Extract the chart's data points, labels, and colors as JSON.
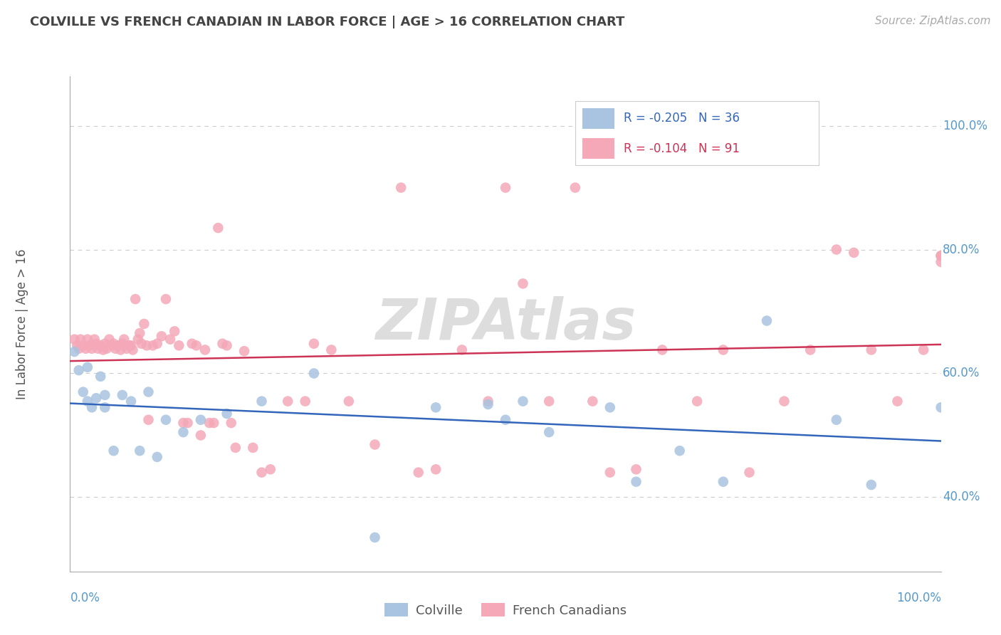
{
  "title": "COLVILLE VS FRENCH CANADIAN IN LABOR FORCE | AGE > 16 CORRELATION CHART",
  "source_text": "Source: ZipAtlas.com",
  "ylabel": "In Labor Force | Age > 16",
  "xlim": [
    0.0,
    1.0
  ],
  "ylim": [
    0.28,
    1.08
  ],
  "yticks": [
    0.4,
    0.6,
    0.8,
    1.0
  ],
  "ytick_labels": [
    "40.0%",
    "60.0%",
    "80.0%",
    "100.0%"
  ],
  "colville_R": -0.205,
  "colville_N": 36,
  "french_R": -0.104,
  "french_N": 91,
  "colville_color": "#a8c4e0",
  "french_color": "#f4a8b8",
  "colville_line_color": "#3366bb",
  "french_line_color": "#cc3355",
  "background_color": "#ffffff",
  "grid_color": "#cccccc",
  "axis_label_color": "#5599cc",
  "title_color": "#444444",
  "watermark_color": "#dddddd",
  "colville_x": [
    0.005,
    0.01,
    0.015,
    0.02,
    0.02,
    0.025,
    0.03,
    0.035,
    0.04,
    0.04,
    0.05,
    0.06,
    0.07,
    0.08,
    0.09,
    0.1,
    0.11,
    0.13,
    0.15,
    0.18,
    0.22,
    0.28,
    0.35,
    0.42,
    0.48,
    0.5,
    0.52,
    0.55,
    0.62,
    0.65,
    0.7,
    0.75,
    0.8,
    0.88,
    0.92,
    1.0
  ],
  "colville_y": [
    0.635,
    0.605,
    0.57,
    0.555,
    0.61,
    0.545,
    0.56,
    0.595,
    0.545,
    0.565,
    0.475,
    0.565,
    0.555,
    0.475,
    0.57,
    0.465,
    0.525,
    0.505,
    0.525,
    0.535,
    0.555,
    0.6,
    0.335,
    0.545,
    0.55,
    0.525,
    0.555,
    0.505,
    0.545,
    0.425,
    0.475,
    0.425,
    0.685,
    0.525,
    0.42,
    0.545
  ],
  "french_x": [
    0.005,
    0.008,
    0.01,
    0.012,
    0.015,
    0.018,
    0.02,
    0.022,
    0.025,
    0.028,
    0.03,
    0.032,
    0.035,
    0.038,
    0.04,
    0.042,
    0.045,
    0.048,
    0.05,
    0.052,
    0.055,
    0.058,
    0.06,
    0.062,
    0.065,
    0.068,
    0.07,
    0.072,
    0.075,
    0.078,
    0.08,
    0.082,
    0.085,
    0.088,
    0.09,
    0.095,
    0.1,
    0.105,
    0.11,
    0.115,
    0.12,
    0.125,
    0.13,
    0.135,
    0.14,
    0.145,
    0.15,
    0.155,
    0.16,
    0.165,
    0.17,
    0.175,
    0.18,
    0.185,
    0.19,
    0.2,
    0.21,
    0.22,
    0.23,
    0.25,
    0.27,
    0.28,
    0.3,
    0.32,
    0.35,
    0.38,
    0.4,
    0.42,
    0.45,
    0.48,
    0.5,
    0.52,
    0.55,
    0.58,
    0.6,
    0.62,
    0.65,
    0.68,
    0.72,
    0.75,
    0.78,
    0.82,
    0.85,
    0.88,
    0.9,
    0.92,
    0.95,
    0.98,
    1.0,
    1.0,
    1.0
  ],
  "french_y": [
    0.655,
    0.645,
    0.64,
    0.655,
    0.645,
    0.64,
    0.655,
    0.645,
    0.64,
    0.655,
    0.648,
    0.64,
    0.645,
    0.638,
    0.648,
    0.64,
    0.655,
    0.645,
    0.648,
    0.64,
    0.645,
    0.638,
    0.648,
    0.655,
    0.64,
    0.645,
    0.645,
    0.638,
    0.72,
    0.655,
    0.665,
    0.648,
    0.68,
    0.645,
    0.525,
    0.645,
    0.648,
    0.66,
    0.72,
    0.655,
    0.668,
    0.645,
    0.52,
    0.52,
    0.648,
    0.645,
    0.5,
    0.638,
    0.52,
    0.52,
    0.835,
    0.648,
    0.645,
    0.52,
    0.48,
    0.636,
    0.48,
    0.44,
    0.445,
    0.555,
    0.555,
    0.648,
    0.638,
    0.555,
    0.485,
    0.9,
    0.44,
    0.445,
    0.638,
    0.555,
    0.9,
    0.745,
    0.555,
    0.9,
    0.555,
    0.44,
    0.445,
    0.638,
    0.555,
    0.638,
    0.44,
    0.555,
    0.638,
    0.8,
    0.795,
    0.638,
    0.555,
    0.638,
    0.78,
    0.79,
    0.79
  ]
}
